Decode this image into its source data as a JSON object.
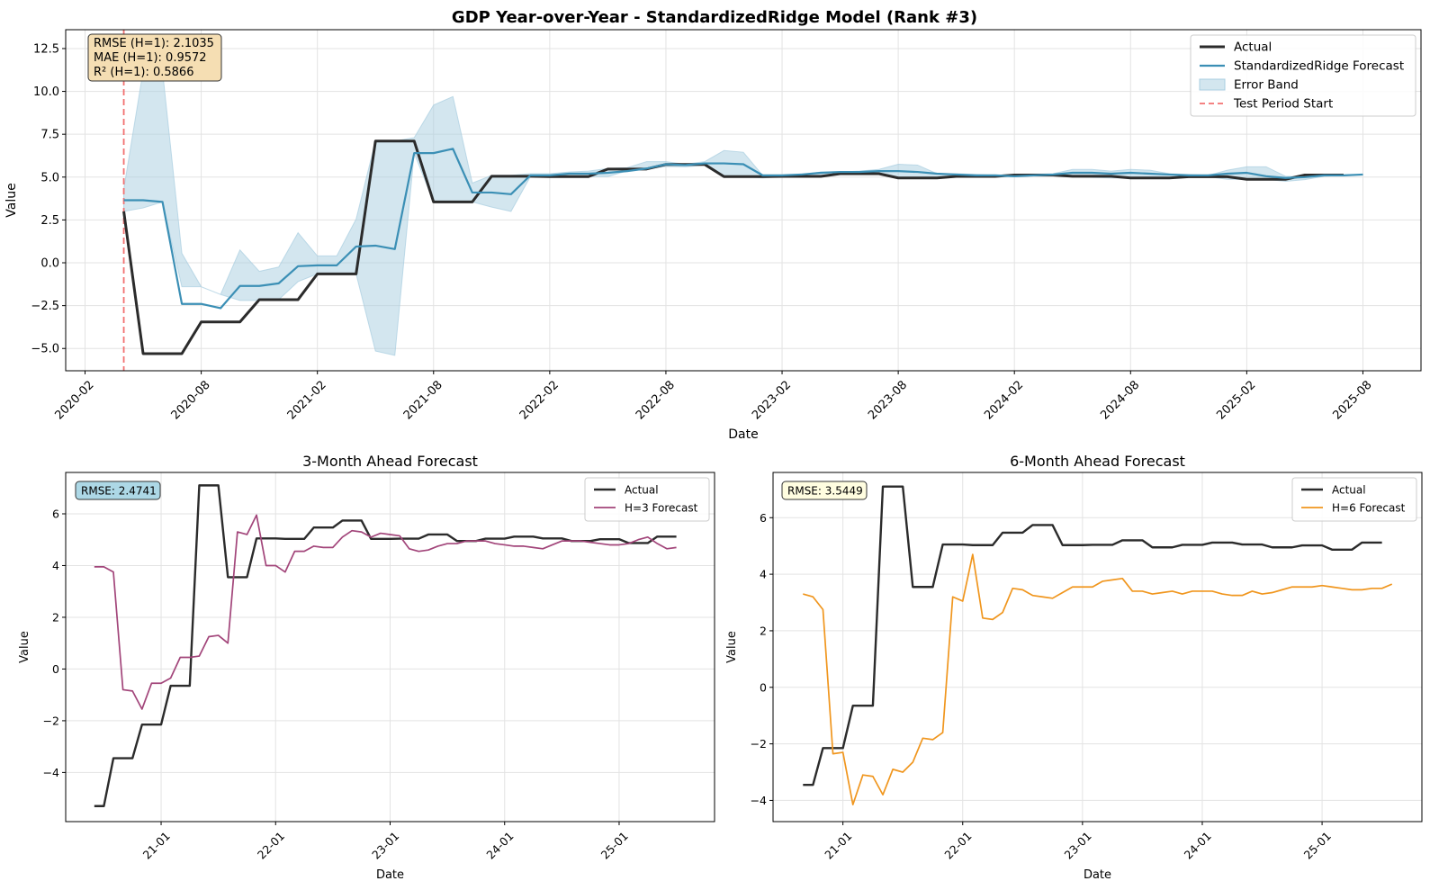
{
  "main_title": "GDP Year-over-Year - StandardizedRidge Model (Rank #3)",
  "chart_data": [
    {
      "id": "top",
      "type": "line",
      "title": "",
      "xlabel": "Date",
      "ylabel": "Value",
      "x_date_start": "2020-04",
      "x_tick_labels": [
        "2020-02",
        "2020-08",
        "2021-02",
        "2021-08",
        "2022-02",
        "2022-08",
        "2023-02",
        "2023-08",
        "2024-02",
        "2024-08",
        "2025-02",
        "2025-08"
      ],
      "x_tick_dates": [
        "2020-02",
        "2020-08",
        "2021-02",
        "2021-08",
        "2022-02",
        "2022-08",
        "2023-02",
        "2023-08",
        "2024-02",
        "2024-08",
        "2025-02",
        "2025-08"
      ],
      "xlim": [
        "2020-01",
        "2025-11"
      ],
      "ylim": [
        -6.3,
        13.6
      ],
      "y_ticks": [
        -5.0,
        -2.5,
        0.0,
        2.5,
        5.0,
        7.5,
        10.0,
        12.5
      ],
      "y_tick_labels": [
        "−5.0",
        "−2.5",
        "0.0",
        "2.5",
        "5.0",
        "7.5",
        "10.0",
        "12.5"
      ],
      "grid": true,
      "legend_position": "top-right",
      "test_period_start": "2020-04",
      "test_period_label": "Test Period Start",
      "stats": [
        "RMSE (H=1): 2.1035",
        "MAE (H=1): 0.9572",
        "R² (H=1): 0.5866"
      ],
      "series": [
        {
          "name": "Actual",
          "color": "#2b2b2b",
          "width": 3,
          "values": [
            3.0,
            -5.3,
            -5.3,
            -5.3,
            -3.45,
            -3.45,
            -3.45,
            -2.15,
            -2.15,
            -2.15,
            -0.65,
            -0.65,
            -0.65,
            7.1,
            7.1,
            7.1,
            3.55,
            3.55,
            3.55,
            5.05,
            5.05,
            5.05,
            5.03,
            5.03,
            5.03,
            5.47,
            5.47,
            5.47,
            5.74,
            5.74,
            5.74,
            5.03,
            5.03,
            5.03,
            5.04,
            5.04,
            5.04,
            5.2,
            5.2,
            5.2,
            4.95,
            4.95,
            4.95,
            5.04,
            5.04,
            5.04,
            5.12,
            5.12,
            5.12,
            5.05,
            5.05,
            5.05,
            4.95,
            4.95,
            4.95,
            5.02,
            5.02,
            5.02,
            4.87,
            4.87,
            4.87,
            5.12,
            5.12,
            5.12
          ]
        },
        {
          "name": "StandardizedRidge Forecast",
          "color": "#3b8fb5",
          "width": 2.2,
          "values": [
            3.65,
            3.65,
            3.55,
            -2.4,
            -2.4,
            -2.65,
            -1.35,
            -1.35,
            -1.2,
            -0.2,
            -0.15,
            -0.15,
            0.95,
            1.0,
            0.8,
            6.4,
            6.4,
            6.65,
            4.1,
            4.1,
            4.0,
            5.1,
            5.1,
            5.2,
            5.2,
            5.25,
            5.35,
            5.5,
            5.75,
            5.7,
            5.8,
            5.8,
            5.75,
            5.1,
            5.1,
            5.15,
            5.25,
            5.3,
            5.3,
            5.35,
            5.35,
            5.3,
            5.2,
            5.15,
            5.1,
            5.1,
            5.05,
            5.1,
            5.15,
            5.25,
            5.25,
            5.2,
            5.25,
            5.2,
            5.15,
            5.1,
            5.1,
            5.2,
            5.25,
            5.05,
            4.95,
            5.0,
            5.1,
            5.1,
            5.15
          ]
        }
      ],
      "band": {
        "name": "Error Band",
        "color": "#a8cde0",
        "lower": [
          3.0,
          3.2,
          3.55,
          -1.4,
          -1.4,
          -1.85,
          -2.2,
          -2.2,
          -2.15,
          -1.1,
          -0.65,
          -0.65,
          -0.65,
          -5.15,
          -5.4,
          6.4,
          3.55,
          3.55,
          3.55,
          3.25,
          3.0,
          5.03,
          5.03,
          5.03,
          5.03,
          5.03,
          5.37,
          5.47,
          5.62,
          5.6,
          5.7,
          5.03,
          5.03,
          4.95,
          5.03,
          5.04,
          5.04,
          5.2,
          5.2,
          5.2,
          4.95,
          4.95,
          4.95,
          5.04,
          5.04,
          5.04,
          5.05,
          5.12,
          5.12,
          5.03,
          4.98,
          4.95,
          4.95,
          4.95,
          4.95,
          5.02,
          5.02,
          4.87,
          4.87,
          4.87,
          4.75,
          4.85,
          5.05,
          5.1,
          5.15
        ],
        "upper": [
          4.3,
          11.2,
          11.2,
          0.55,
          -1.4,
          -1.85,
          0.75,
          -0.5,
          -0.25,
          1.75,
          0.4,
          0.4,
          2.55,
          7.1,
          7.1,
          7.3,
          9.2,
          9.7,
          4.65,
          5.1,
          5.1,
          5.2,
          5.2,
          5.3,
          5.35,
          5.5,
          5.55,
          5.9,
          5.9,
          5.75,
          5.9,
          6.55,
          6.45,
          5.1,
          5.1,
          5.15,
          5.3,
          5.3,
          5.35,
          5.45,
          5.75,
          5.7,
          5.2,
          5.2,
          5.15,
          5.1,
          5.15,
          5.15,
          5.2,
          5.45,
          5.45,
          5.35,
          5.45,
          5.4,
          5.2,
          5.15,
          5.1,
          5.4,
          5.6,
          5.6,
          5.05,
          5.0,
          5.12,
          5.12,
          5.15
        ]
      }
    },
    {
      "id": "bl",
      "type": "line",
      "title": "3-Month Ahead Forecast",
      "xlabel": "Date",
      "ylabel": "Value",
      "x_date_start": "2020-06",
      "x_tick_labels": [
        "21-01",
        "22-01",
        "23-01",
        "24-01",
        "25-01"
      ],
      "x_tick_dates": [
        "2021-01",
        "2022-01",
        "2023-01",
        "2024-01",
        "2025-01"
      ],
      "xlim": [
        "2020-03",
        "2025-11"
      ],
      "ylim": [
        -5.9,
        7.6
      ],
      "y_ticks": [
        -4,
        -2,
        0,
        2,
        4,
        6
      ],
      "y_tick_labels": [
        "−4",
        "−2",
        "0",
        "2",
        "4",
        "6"
      ],
      "grid": true,
      "legend_position": "top-right",
      "stats": [
        "RMSE: 2.4741"
      ],
      "series": [
        {
          "name": "Actual",
          "color": "#2b2b2b",
          "width": 2.4,
          "values": [
            -5.3,
            -5.3,
            -3.45,
            -3.45,
            -3.45,
            -2.15,
            -2.15,
            -2.15,
            -0.65,
            -0.65,
            -0.65,
            7.1,
            7.1,
            7.1,
            3.55,
            3.55,
            3.55,
            5.05,
            5.05,
            5.05,
            5.03,
            5.03,
            5.03,
            5.47,
            5.47,
            5.47,
            5.74,
            5.74,
            5.74,
            5.03,
            5.03,
            5.03,
            5.04,
            5.04,
            5.04,
            5.2,
            5.2,
            5.2,
            4.95,
            4.95,
            4.95,
            5.04,
            5.04,
            5.04,
            5.12,
            5.12,
            5.12,
            5.05,
            5.05,
            5.05,
            4.95,
            4.95,
            4.95,
            5.02,
            5.02,
            5.02,
            4.87,
            4.87,
            4.87,
            5.12,
            5.12,
            5.12
          ]
        },
        {
          "name": "H=3 Forecast",
          "color": "#a2457a",
          "width": 1.7,
          "values": [
            3.95,
            3.95,
            3.75,
            -0.8,
            -0.85,
            -1.55,
            -0.55,
            -0.55,
            -0.35,
            0.45,
            0.45,
            0.5,
            1.25,
            1.3,
            1.0,
            5.3,
            5.2,
            5.95,
            4.0,
            4.0,
            3.75,
            4.55,
            4.55,
            4.75,
            4.7,
            4.7,
            5.1,
            5.35,
            5.3,
            5.1,
            5.25,
            5.2,
            5.15,
            4.65,
            4.55,
            4.6,
            4.75,
            4.85,
            4.85,
            4.95,
            4.95,
            4.95,
            4.85,
            4.8,
            4.75,
            4.75,
            4.7,
            4.65,
            4.8,
            4.95,
            4.95,
            4.95,
            4.9,
            4.85,
            4.8,
            4.8,
            4.85,
            5.0,
            5.1,
            4.85,
            4.65,
            4.7
          ]
        }
      ]
    },
    {
      "id": "br",
      "type": "line",
      "title": "6-Month Ahead Forecast",
      "xlabel": "Date",
      "ylabel": "Value",
      "x_date_start": "2020-09",
      "x_tick_labels": [
        "21-01",
        "22-01",
        "23-01",
        "24-01",
        "25-01"
      ],
      "x_tick_dates": [
        "2021-01",
        "2022-01",
        "2023-01",
        "2024-01",
        "2025-01"
      ],
      "xlim": [
        "2020-06",
        "2025-11"
      ],
      "ylim": [
        -4.75,
        7.6
      ],
      "y_ticks": [
        -4,
        -2,
        0,
        2,
        4,
        6
      ],
      "y_tick_labels": [
        "−4",
        "−2",
        "0",
        "2",
        "4",
        "6"
      ],
      "grid": true,
      "legend_position": "top-right",
      "stats": [
        "RMSE: 3.5449"
      ],
      "series": [
        {
          "name": "Actual",
          "color": "#2b2b2b",
          "width": 2.4,
          "values": [
            -3.45,
            -3.45,
            -2.15,
            -2.15,
            -2.15,
            -0.65,
            -0.65,
            -0.65,
            7.1,
            7.1,
            7.1,
            3.55,
            3.55,
            3.55,
            5.05,
            5.05,
            5.05,
            5.03,
            5.03,
            5.03,
            5.47,
            5.47,
            5.47,
            5.74,
            5.74,
            5.74,
            5.03,
            5.03,
            5.03,
            5.04,
            5.04,
            5.04,
            5.2,
            5.2,
            5.2,
            4.95,
            4.95,
            4.95,
            5.04,
            5.04,
            5.04,
            5.12,
            5.12,
            5.12,
            5.05,
            5.05,
            5.05,
            4.95,
            4.95,
            4.95,
            5.02,
            5.02,
            5.02,
            4.87,
            4.87,
            4.87,
            5.12,
            5.12,
            5.12
          ]
        },
        {
          "name": "H=6 Forecast",
          "color": "#f0961e",
          "width": 1.7,
          "values": [
            3.3,
            3.2,
            2.75,
            -2.35,
            -2.3,
            -4.15,
            -3.1,
            -3.15,
            -3.8,
            -2.9,
            -3.0,
            -2.65,
            -1.8,
            -1.85,
            -1.6,
            3.2,
            3.05,
            4.7,
            2.45,
            2.4,
            2.65,
            3.5,
            3.45,
            3.25,
            3.2,
            3.15,
            3.35,
            3.55,
            3.55,
            3.55,
            3.75,
            3.8,
            3.85,
            3.4,
            3.4,
            3.3,
            3.35,
            3.4,
            3.3,
            3.4,
            3.4,
            3.4,
            3.3,
            3.25,
            3.25,
            3.4,
            3.3,
            3.35,
            3.45,
            3.55,
            3.55,
            3.55,
            3.6,
            3.55,
            3.5,
            3.45,
            3.45,
            3.5,
            3.5,
            3.65
          ]
        }
      ]
    }
  ]
}
